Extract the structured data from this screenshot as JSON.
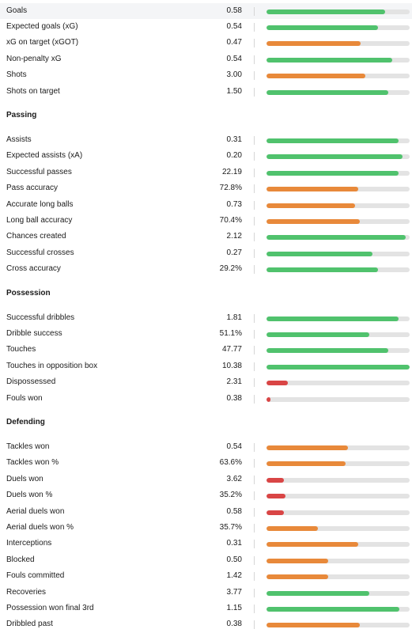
{
  "colors": {
    "green": "#50c26d",
    "orange": "#e8893a",
    "red": "#d94545"
  },
  "sections": [
    {
      "heading": "",
      "rows": [
        {
          "label": "Goals",
          "value": "0.58",
          "pct": 83,
          "color": "green",
          "highlight": true
        },
        {
          "label": "Expected goals (xG)",
          "value": "0.54",
          "pct": 78,
          "color": "green"
        },
        {
          "label": "xG on target (xGOT)",
          "value": "0.47",
          "pct": 66,
          "color": "orange"
        },
        {
          "label": "Non-penalty xG",
          "value": "0.54",
          "pct": 88,
          "color": "green"
        },
        {
          "label": "Shots",
          "value": "3.00",
          "pct": 69,
          "color": "orange"
        },
        {
          "label": "Shots on target",
          "value": "1.50",
          "pct": 85,
          "color": "green"
        }
      ]
    },
    {
      "heading": "Passing",
      "rows": [
        {
          "label": "Assists",
          "value": "0.31",
          "pct": 92,
          "color": "green"
        },
        {
          "label": "Expected assists (xA)",
          "value": "0.20",
          "pct": 95,
          "color": "green"
        },
        {
          "label": "Successful passes",
          "value": "22.19",
          "pct": 92,
          "color": "green"
        },
        {
          "label": "Pass accuracy",
          "value": "72.8%",
          "pct": 64,
          "color": "orange"
        },
        {
          "label": "Accurate long balls",
          "value": "0.73",
          "pct": 62,
          "color": "orange"
        },
        {
          "label": "Long ball accuracy",
          "value": "70.4%",
          "pct": 65,
          "color": "orange"
        },
        {
          "label": "Chances created",
          "value": "2.12",
          "pct": 97,
          "color": "green"
        },
        {
          "label": "Successful crosses",
          "value": "0.27",
          "pct": 74,
          "color": "green"
        },
        {
          "label": "Cross accuracy",
          "value": "29.2%",
          "pct": 78,
          "color": "green"
        }
      ]
    },
    {
      "heading": "Possession",
      "rows": [
        {
          "label": "Successful dribbles",
          "value": "1.81",
          "pct": 92,
          "color": "green"
        },
        {
          "label": "Dribble success",
          "value": "51.1%",
          "pct": 72,
          "color": "green"
        },
        {
          "label": "Touches",
          "value": "47.77",
          "pct": 85,
          "color": "green"
        },
        {
          "label": "Touches in opposition box",
          "value": "10.38",
          "pct": 100,
          "color": "green"
        },
        {
          "label": "Dispossessed",
          "value": "2.31",
          "pct": 15,
          "color": "red"
        },
        {
          "label": "Fouls won",
          "value": "0.38",
          "pct": 3,
          "color": "red"
        }
      ]
    },
    {
      "heading": "Defending",
      "rows": [
        {
          "label": "Tackles won",
          "value": "0.54",
          "pct": 57,
          "color": "orange"
        },
        {
          "label": "Tackles won %",
          "value": "63.6%",
          "pct": 55,
          "color": "orange"
        },
        {
          "label": "Duels won",
          "value": "3.62",
          "pct": 12,
          "color": "red"
        },
        {
          "label": "Duels won %",
          "value": "35.2%",
          "pct": 13,
          "color": "red"
        },
        {
          "label": "Aerial duels won",
          "value": "0.58",
          "pct": 12,
          "color": "red"
        },
        {
          "label": "Aerial duels won %",
          "value": "35.7%",
          "pct": 36,
          "color": "orange"
        },
        {
          "label": "Interceptions",
          "value": "0.31",
          "pct": 64,
          "color": "orange"
        },
        {
          "label": "Blocked",
          "value": "0.50",
          "pct": 43,
          "color": "orange"
        },
        {
          "label": "Fouls committed",
          "value": "1.42",
          "pct": 43,
          "color": "orange"
        },
        {
          "label": "Recoveries",
          "value": "3.77",
          "pct": 72,
          "color": "green"
        },
        {
          "label": "Possession won final 3rd",
          "value": "1.15",
          "pct": 93,
          "color": "green"
        },
        {
          "label": "Dribbled past",
          "value": "0.38",
          "pct": 65,
          "color": "orange"
        }
      ]
    }
  ]
}
